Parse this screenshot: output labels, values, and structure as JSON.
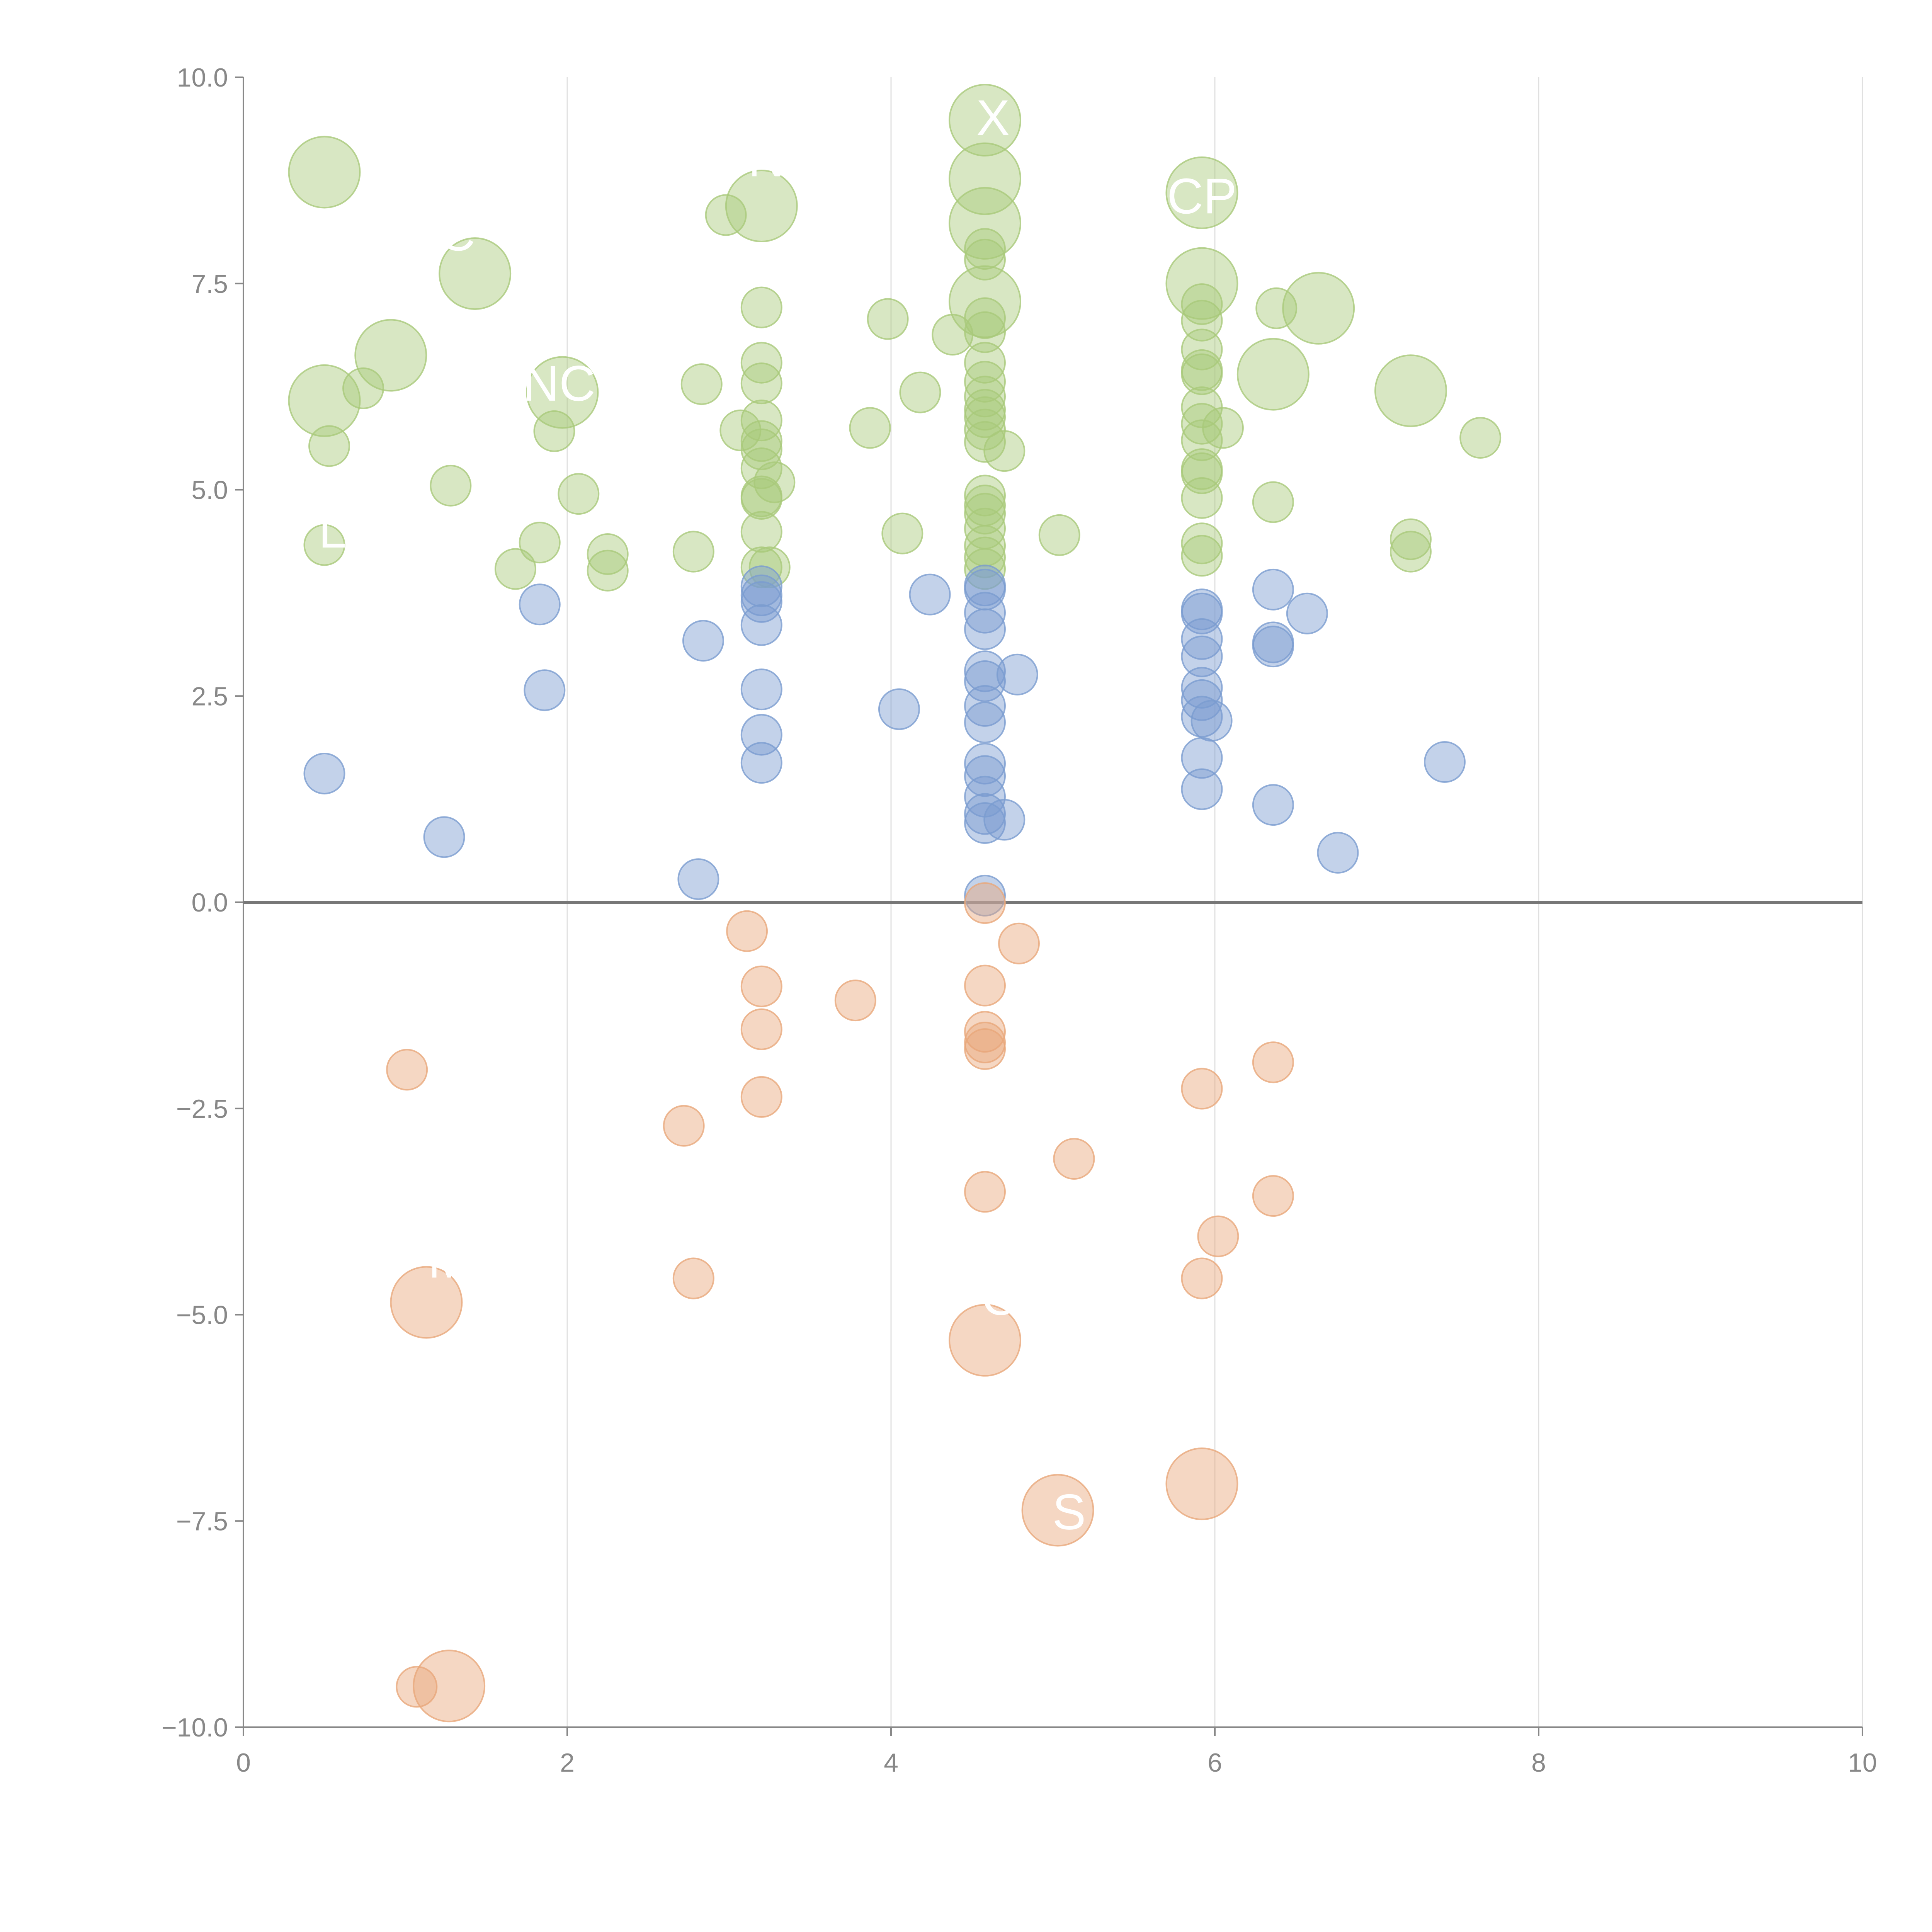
{
  "chart_data": {
    "type": "scatter",
    "title": "",
    "xlabel": "",
    "ylabel": "",
    "xlim": [
      0,
      10
    ],
    "ylim": [
      -10,
      10
    ],
    "x_ticks": [
      "0",
      "2",
      "4",
      "6",
      "8",
      "10"
    ],
    "y_ticks": [
      "10.0",
      "7.5",
      "5.0",
      "2.5",
      "0.0",
      "−2.5",
      "−5.0",
      "−7.5",
      "−10.0"
    ],
    "grid": {
      "vertical": true,
      "horizontal": false
    },
    "zero_line": true,
    "colors": {
      "green": "#a9c97a",
      "blue": "#7a9cd0",
      "orange": "#e8a77a"
    },
    "series": [
      {
        "color_key": "green",
        "points": [
          {
            "x": 0.5,
            "y": 8.85,
            "r": 3
          },
          {
            "x": 1.43,
            "y": 7.62,
            "r": 3
          },
          {
            "x": 0.91,
            "y": 6.63,
            "r": 3
          },
          {
            "x": 0.5,
            "y": 6.08,
            "r": 3
          },
          {
            "x": 0.74,
            "y": 6.23,
            "r": 1
          },
          {
            "x": 0.53,
            "y": 5.53,
            "r": 1
          },
          {
            "x": 1.28,
            "y": 5.05,
            "r": 1
          },
          {
            "x": 0.5,
            "y": 4.33,
            "r": 1
          },
          {
            "x": 1.68,
            "y": 4.04,
            "r": 1
          },
          {
            "x": 1.83,
            "y": 4.36,
            "r": 1
          },
          {
            "x": 1.92,
            "y": 5.71,
            "r": 1
          },
          {
            "x": 2.07,
            "y": 4.95,
            "r": 1
          },
          {
            "x": 2.25,
            "y": 4.22,
            "r": 1
          },
          {
            "x": 2.25,
            "y": 4.02,
            "r": 1
          },
          {
            "x": 1.97,
            "y": 6.18,
            "r": 3
          },
          {
            "x": 2.78,
            "y": 4.25,
            "r": 1
          },
          {
            "x": 2.83,
            "y": 6.28,
            "r": 1
          },
          {
            "x": 2.98,
            "y": 8.33,
            "r": 1
          },
          {
            "x": 3.07,
            "y": 5.72,
            "r": 1
          },
          {
            "x": 3.2,
            "y": 8.44,
            "r": 3
          },
          {
            "x": 3.2,
            "y": 7.21,
            "r": 1
          },
          {
            "x": 3.2,
            "y": 6.54,
            "r": 1
          },
          {
            "x": 3.2,
            "y": 6.29,
            "r": 1
          },
          {
            "x": 3.2,
            "y": 5.84,
            "r": 1
          },
          {
            "x": 3.2,
            "y": 5.59,
            "r": 1
          },
          {
            "x": 3.2,
            "y": 5.49,
            "r": 1
          },
          {
            "x": 3.2,
            "y": 5.26,
            "r": 1
          },
          {
            "x": 3.28,
            "y": 5.09,
            "r": 1
          },
          {
            "x": 3.2,
            "y": 4.92,
            "r": 1
          },
          {
            "x": 3.2,
            "y": 4.89,
            "r": 1
          },
          {
            "x": 3.2,
            "y": 4.49,
            "r": 1
          },
          {
            "x": 3.2,
            "y": 4.06,
            "r": 1
          },
          {
            "x": 3.25,
            "y": 4.06,
            "r": 1
          },
          {
            "x": 3.87,
            "y": 5.75,
            "r": 1
          },
          {
            "x": 3.98,
            "y": 7.07,
            "r": 1
          },
          {
            "x": 4.07,
            "y": 4.47,
            "r": 1
          },
          {
            "x": 4.18,
            "y": 6.18,
            "r": 1
          },
          {
            "x": 4.38,
            "y": 6.88,
            "r": 1
          },
          {
            "x": 4.58,
            "y": 9.48,
            "r": 3
          },
          {
            "x": 4.58,
            "y": 8.77,
            "r": 3
          },
          {
            "x": 4.58,
            "y": 8.23,
            "r": 3
          },
          {
            "x": 4.58,
            "y": 7.92,
            "r": 1
          },
          {
            "x": 4.58,
            "y": 7.79,
            "r": 1
          },
          {
            "x": 4.58,
            "y": 7.28,
            "r": 3
          },
          {
            "x": 4.58,
            "y": 7.08,
            "r": 1
          },
          {
            "x": 4.58,
            "y": 6.91,
            "r": 1
          },
          {
            "x": 4.58,
            "y": 6.54,
            "r": 1
          },
          {
            "x": 4.58,
            "y": 6.31,
            "r": 1
          },
          {
            "x": 4.58,
            "y": 6.13,
            "r": 1
          },
          {
            "x": 4.58,
            "y": 5.97,
            "r": 1
          },
          {
            "x": 4.58,
            "y": 5.88,
            "r": 1
          },
          {
            "x": 4.58,
            "y": 5.73,
            "r": 1
          },
          {
            "x": 4.58,
            "y": 5.58,
            "r": 1
          },
          {
            "x": 4.7,
            "y": 5.47,
            "r": 1
          },
          {
            "x": 4.58,
            "y": 4.93,
            "r": 1
          },
          {
            "x": 4.58,
            "y": 4.81,
            "r": 1
          },
          {
            "x": 4.58,
            "y": 4.71,
            "r": 1
          },
          {
            "x": 4.58,
            "y": 4.53,
            "r": 1
          },
          {
            "x": 4.58,
            "y": 4.32,
            "r": 1
          },
          {
            "x": 4.58,
            "y": 4.18,
            "r": 1
          },
          {
            "x": 4.58,
            "y": 4.04,
            "r": 1
          },
          {
            "x": 5.04,
            "y": 4.45,
            "r": 1
          },
          {
            "x": 5.92,
            "y": 8.6,
            "r": 3
          },
          {
            "x": 5.92,
            "y": 7.5,
            "r": 3
          },
          {
            "x": 5.92,
            "y": 7.25,
            "r": 1
          },
          {
            "x": 5.92,
            "y": 7.05,
            "r": 1
          },
          {
            "x": 5.92,
            "y": 6.7,
            "r": 1
          },
          {
            "x": 5.92,
            "y": 6.45,
            "r": 1
          },
          {
            "x": 5.92,
            "y": 6.4,
            "r": 1
          },
          {
            "x": 5.92,
            "y": 6.0,
            "r": 1
          },
          {
            "x": 5.92,
            "y": 5.8,
            "r": 1
          },
          {
            "x": 5.92,
            "y": 5.6,
            "r": 1
          },
          {
            "x": 6.05,
            "y": 5.75,
            "r": 1
          },
          {
            "x": 5.92,
            "y": 5.25,
            "r": 1
          },
          {
            "x": 5.92,
            "y": 5.2,
            "r": 1
          },
          {
            "x": 5.92,
            "y": 4.9,
            "r": 1
          },
          {
            "x": 5.92,
            "y": 4.35,
            "r": 1
          },
          {
            "x": 5.92,
            "y": 4.2,
            "r": 1
          },
          {
            "x": 6.36,
            "y": 6.4,
            "r": 3
          },
          {
            "x": 6.38,
            "y": 7.2,
            "r": 1
          },
          {
            "x": 6.36,
            "y": 4.85,
            "r": 1
          },
          {
            "x": 6.64,
            "y": 7.2,
            "r": 3
          },
          {
            "x": 7.21,
            "y": 6.2,
            "r": 3
          },
          {
            "x": 7.64,
            "y": 5.63,
            "r": 1
          },
          {
            "x": 7.21,
            "y": 4.4,
            "r": 1
          },
          {
            "x": 7.21,
            "y": 4.25,
            "r": 1
          }
        ]
      },
      {
        "color_key": "blue",
        "points": [
          {
            "x": 0.5,
            "y": 1.56,
            "r": 1
          },
          {
            "x": 1.24,
            "y": 0.79,
            "r": 1
          },
          {
            "x": 1.83,
            "y": 3.61,
            "r": 1
          },
          {
            "x": 1.86,
            "y": 2.57,
            "r": 1
          },
          {
            "x": 2.81,
            "y": 0.28,
            "r": 1
          },
          {
            "x": 2.84,
            "y": 3.17,
            "r": 1
          },
          {
            "x": 3.2,
            "y": 3.83,
            "r": 1
          },
          {
            "x": 3.2,
            "y": 3.72,
            "r": 1
          },
          {
            "x": 3.2,
            "y": 3.64,
            "r": 1
          },
          {
            "x": 3.2,
            "y": 3.36,
            "r": 1
          },
          {
            "x": 3.2,
            "y": 2.58,
            "r": 1
          },
          {
            "x": 3.2,
            "y": 2.03,
            "r": 1
          },
          {
            "x": 3.2,
            "y": 1.69,
            "r": 1
          },
          {
            "x": 4.05,
            "y": 2.34,
            "r": 1
          },
          {
            "x": 4.24,
            "y": 3.73,
            "r": 1
          },
          {
            "x": 4.58,
            "y": 3.84,
            "r": 1
          },
          {
            "x": 4.58,
            "y": 3.79,
            "r": 1
          },
          {
            "x": 4.58,
            "y": 3.51,
            "r": 1
          },
          {
            "x": 4.58,
            "y": 3.31,
            "r": 1
          },
          {
            "x": 4.58,
            "y": 2.8,
            "r": 1
          },
          {
            "x": 4.58,
            "y": 2.68,
            "r": 1
          },
          {
            "x": 4.58,
            "y": 2.38,
            "r": 1
          },
          {
            "x": 4.58,
            "y": 2.18,
            "r": 1
          },
          {
            "x": 4.58,
            "y": 1.68,
            "r": 1
          },
          {
            "x": 4.58,
            "y": 1.53,
            "r": 1
          },
          {
            "x": 4.58,
            "y": 1.28,
            "r": 1
          },
          {
            "x": 4.58,
            "y": 1.07,
            "r": 1
          },
          {
            "x": 4.58,
            "y": 0.96,
            "r": 1
          },
          {
            "x": 4.7,
            "y": 1.0,
            "r": 1
          },
          {
            "x": 4.78,
            "y": 2.76,
            "r": 1
          },
          {
            "x": 4.58,
            "y": 0.08,
            "r": 1
          },
          {
            "x": 5.92,
            "y": 3.55,
            "r": 1
          },
          {
            "x": 5.92,
            "y": 3.5,
            "r": 1
          },
          {
            "x": 5.92,
            "y": 3.19,
            "r": 1
          },
          {
            "x": 5.92,
            "y": 2.98,
            "r": 1
          },
          {
            "x": 5.92,
            "y": 2.6,
            "r": 1
          },
          {
            "x": 5.92,
            "y": 2.45,
            "r": 1
          },
          {
            "x": 5.92,
            "y": 2.25,
            "r": 1
          },
          {
            "x": 5.98,
            "y": 2.2,
            "r": 1
          },
          {
            "x": 5.92,
            "y": 1.75,
            "r": 1
          },
          {
            "x": 5.92,
            "y": 1.37,
            "r": 1
          },
          {
            "x": 6.36,
            "y": 3.79,
            "r": 1
          },
          {
            "x": 6.36,
            "y": 3.15,
            "r": 1
          },
          {
            "x": 6.36,
            "y": 3.1,
            "r": 1
          },
          {
            "x": 6.57,
            "y": 3.5,
            "r": 1
          },
          {
            "x": 6.36,
            "y": 1.18,
            "r": 1
          },
          {
            "x": 6.76,
            "y": 0.6,
            "r": 1
          },
          {
            "x": 7.42,
            "y": 1.7,
            "r": 1
          }
        ]
      },
      {
        "color_key": "orange",
        "points": [
          {
            "x": 1.01,
            "y": -2.03,
            "r": 1
          },
          {
            "x": 1.13,
            "y": -4.85,
            "r": 3
          },
          {
            "x": 1.07,
            "y": -9.51,
            "r": 1
          },
          {
            "x": 1.27,
            "y": -9.5,
            "r": 3
          },
          {
            "x": 2.72,
            "y": -2.71,
            "r": 1
          },
          {
            "x": 2.78,
            "y": -4.56,
            "r": 1
          },
          {
            "x": 3.11,
            "y": -0.35,
            "r": 1
          },
          {
            "x": 3.2,
            "y": -1.02,
            "r": 1
          },
          {
            "x": 3.2,
            "y": -1.54,
            "r": 1
          },
          {
            "x": 3.2,
            "y": -2.36,
            "r": 1
          },
          {
            "x": 3.78,
            "y": -1.19,
            "r": 1
          },
          {
            "x": 4.58,
            "y": -0.01,
            "r": 1
          },
          {
            "x": 4.58,
            "y": -1.01,
            "r": 1
          },
          {
            "x": 4.58,
            "y": -1.57,
            "r": 1
          },
          {
            "x": 4.58,
            "y": -1.7,
            "r": 1
          },
          {
            "x": 4.58,
            "y": -1.78,
            "r": 1
          },
          {
            "x": 4.79,
            "y": -0.5,
            "r": 1
          },
          {
            "x": 4.58,
            "y": -3.51,
            "r": 1
          },
          {
            "x": 4.58,
            "y": -5.31,
            "r": 3
          },
          {
            "x": 5.03,
            "y": -7.37,
            "r": 3
          },
          {
            "x": 5.13,
            "y": -3.11,
            "r": 1
          },
          {
            "x": 5.92,
            "y": -2.26,
            "r": 1
          },
          {
            "x": 5.92,
            "y": -7.05,
            "r": 3
          },
          {
            "x": 6.02,
            "y": -4.05,
            "r": 1
          },
          {
            "x": 5.92,
            "y": -4.56,
            "r": 1
          },
          {
            "x": 6.36,
            "y": -1.94,
            "r": 1
          },
          {
            "x": 6.36,
            "y": -3.56,
            "r": 1
          }
        ]
      }
    ],
    "labels": [
      {
        "text": "NC",
        "x": 1.95,
        "y": 6.08
      },
      {
        "text": "C",
        "x": 1.32,
        "y": 7.9
      },
      {
        "text": "N",
        "x": 3.23,
        "y": 8.8
      },
      {
        "text": "X",
        "x": 4.63,
        "y": 9.3
      },
      {
        "text": "CP",
        "x": 5.92,
        "y": 8.35
      },
      {
        "text": "C",
        "x": 4.67,
        "y": -5.0
      },
      {
        "text": "M",
        "x": 1.27,
        "y": -4.55
      },
      {
        "text": "S",
        "x": 5.1,
        "y": -7.6
      },
      {
        "text": "L",
        "x": 0.55,
        "y": 4.3
      }
    ]
  }
}
